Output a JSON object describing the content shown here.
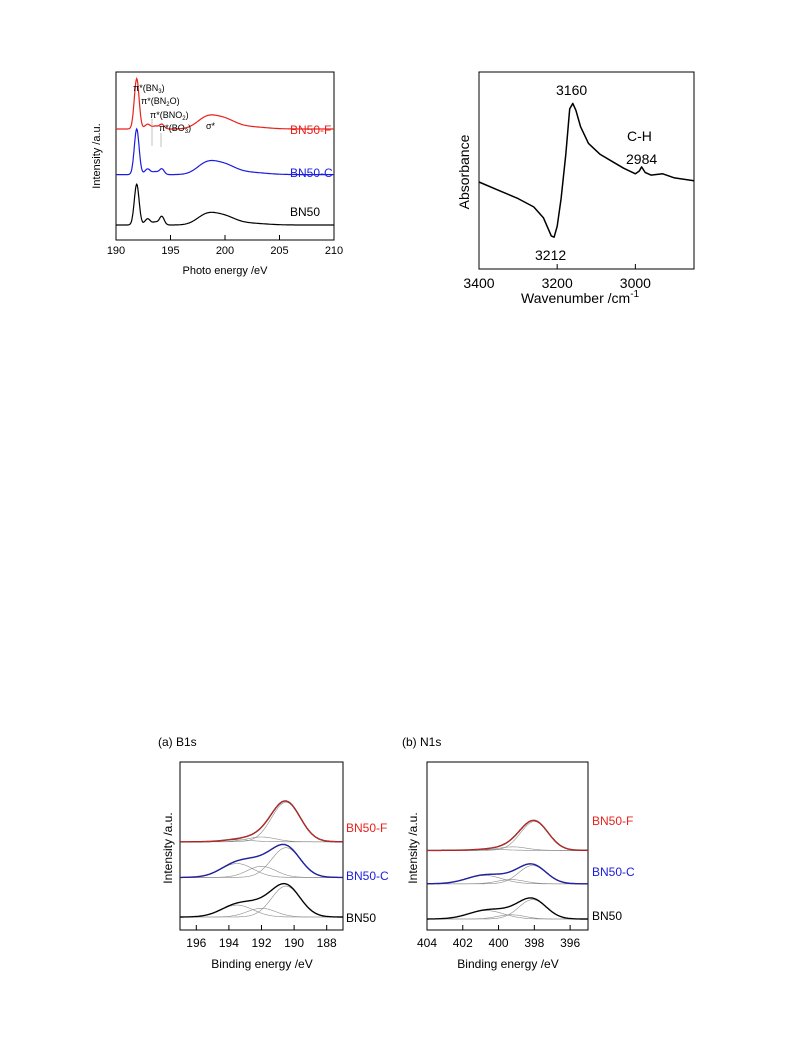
{
  "colors": {
    "red": "#e8211c",
    "blue": "#1c1ce0",
    "black": "#000000",
    "gray": "#8a8a8a"
  },
  "chart_data": [
    {
      "id": "nexafs",
      "type": "line",
      "xlabel": "Photo energy /eV",
      "ylabel": "Intensity /a.u.",
      "xlim": [
        190,
        210
      ],
      "xticks": [
        "190",
        "195",
        "200",
        "205",
        "210"
      ],
      "series": [
        {
          "name": "BN50-F",
          "color": "#e8211c",
          "offset": 2.0,
          "peaks": [
            [
              191.9,
              1.05,
              0.22
            ],
            [
              192.9,
              0.1,
              0.25
            ],
            [
              193.6,
              0.06,
              0.25
            ],
            [
              194.2,
              0.1,
              0.22
            ],
            [
              198.3,
              0.22,
              0.9
            ],
            [
              199.9,
              0.18,
              1.0
            ],
            [
              202.0,
              0.05,
              1.6
            ]
          ]
        },
        {
          "name": "BN50-C",
          "color": "#1c1ce0",
          "offset": 1.05,
          "peaks": [
            [
              191.9,
              0.95,
              0.22
            ],
            [
              192.9,
              0.12,
              0.25
            ],
            [
              193.6,
              0.06,
              0.25
            ],
            [
              194.2,
              0.12,
              0.22
            ],
            [
              198.3,
              0.22,
              0.9
            ],
            [
              199.9,
              0.18,
              1.0
            ],
            [
              202.0,
              0.05,
              1.6
            ]
          ]
        },
        {
          "name": "BN50",
          "color": "#000000",
          "offset": 0.0,
          "peaks": [
            [
              191.9,
              0.85,
              0.22
            ],
            [
              192.9,
              0.13,
              0.25
            ],
            [
              193.6,
              0.06,
              0.25
            ],
            [
              194.2,
              0.18,
              0.22
            ],
            [
              198.3,
              0.2,
              0.9
            ],
            [
              199.9,
              0.16,
              1.0
            ],
            [
              202.0,
              0.04,
              1.6
            ]
          ]
        }
      ],
      "annotations": [
        "π*(BN3)",
        "π*(BN2O)",
        "π*(BNO2)",
        "π*(BO3)",
        "σ*"
      ]
    },
    {
      "id": "ftir",
      "type": "line",
      "xlabel": "Wavenumber /cm",
      "xlabel_sup": "-1",
      "ylabel": "Absorbance",
      "xlim": [
        3400,
        2850
      ],
      "xticks": [
        "3400",
        "3200",
        "3000"
      ],
      "series": [
        {
          "color": "#000000",
          "points": [
            [
              3400,
              0.42
            ],
            [
              3350,
              0.36
            ],
            [
              3300,
              0.3
            ],
            [
              3260,
              0.24
            ],
            [
              3235,
              0.16
            ],
            [
              3215,
              0.03
            ],
            [
              3208,
              0.02
            ],
            [
              3200,
              0.1
            ],
            [
              3190,
              0.3
            ],
            [
              3178,
              0.62
            ],
            [
              3168,
              0.95
            ],
            [
              3160,
              0.99
            ],
            [
              3152,
              0.94
            ],
            [
              3140,
              0.82
            ],
            [
              3120,
              0.7
            ],
            [
              3090,
              0.62
            ],
            [
              3060,
              0.57
            ],
            [
              3030,
              0.52
            ],
            [
              3000,
              0.48
            ],
            [
              2990,
              0.5
            ],
            [
              2984,
              0.53
            ],
            [
              2975,
              0.49
            ],
            [
              2960,
              0.47
            ],
            [
              2930,
              0.48
            ],
            [
              2900,
              0.45
            ],
            [
              2850,
              0.43
            ]
          ]
        }
      ],
      "annotations": [
        "3160",
        "3212",
        "C-H",
        "2984"
      ]
    },
    {
      "id": "xps-b1s",
      "type": "line",
      "panel_label": "(a) B1s",
      "xlabel": "Binding energy /eV",
      "ylabel": "Intensity /a.u.",
      "xlim": [
        197,
        187
      ],
      "xticks": [
        "196",
        "194",
        "192",
        "190",
        "188"
      ],
      "series": [
        {
          "name": "BN50-F",
          "color": "#e8211c",
          "offset": 1.9,
          "components": [
            [
              190.5,
              1.0,
              1.6
            ],
            [
              192.0,
              0.12,
              1.6
            ],
            [
              193.5,
              0.05,
              1.6
            ]
          ]
        },
        {
          "name": "BN50-C",
          "color": "#1c1ce0",
          "offset": 1.0,
          "components": [
            [
              190.5,
              0.75,
              1.6
            ],
            [
              192.0,
              0.28,
              1.6
            ],
            [
              193.5,
              0.35,
              1.8
            ]
          ]
        },
        {
          "name": "BN50",
          "color": "#000000",
          "offset": 0.0,
          "components": [
            [
              190.5,
              0.78,
              1.6
            ],
            [
              192.0,
              0.22,
              1.6
            ],
            [
              193.5,
              0.3,
              1.8
            ]
          ]
        }
      ]
    },
    {
      "id": "xps-n1s",
      "type": "line",
      "panel_label": "(b) N1s",
      "xlabel": "Binding energy /eV",
      "ylabel": "Intensity /a.u.",
      "xlim": [
        404,
        395
      ],
      "xticks": [
        "404",
        "402",
        "400",
        "398",
        "396"
      ],
      "series": [
        {
          "name": "BN50-F",
          "color": "#e8211c",
          "offset": 1.95,
          "components": [
            [
              398.0,
              0.82,
              1.4
            ],
            [
              399.2,
              0.1,
              1.4
            ],
            [
              400.5,
              0.03,
              1.6
            ]
          ]
        },
        {
          "name": "BN50-C",
          "color": "#1c1ce0",
          "offset": 1.0,
          "components": [
            [
              398.1,
              0.52,
              1.4
            ],
            [
              399.3,
              0.12,
              1.4
            ],
            [
              400.8,
              0.24,
              1.8
            ]
          ]
        },
        {
          "name": "BN50",
          "color": "#000000",
          "offset": 0.0,
          "components": [
            [
              398.1,
              0.55,
              1.4
            ],
            [
              399.3,
              0.12,
              1.4
            ],
            [
              400.7,
              0.24,
              1.8
            ]
          ]
        }
      ]
    }
  ]
}
